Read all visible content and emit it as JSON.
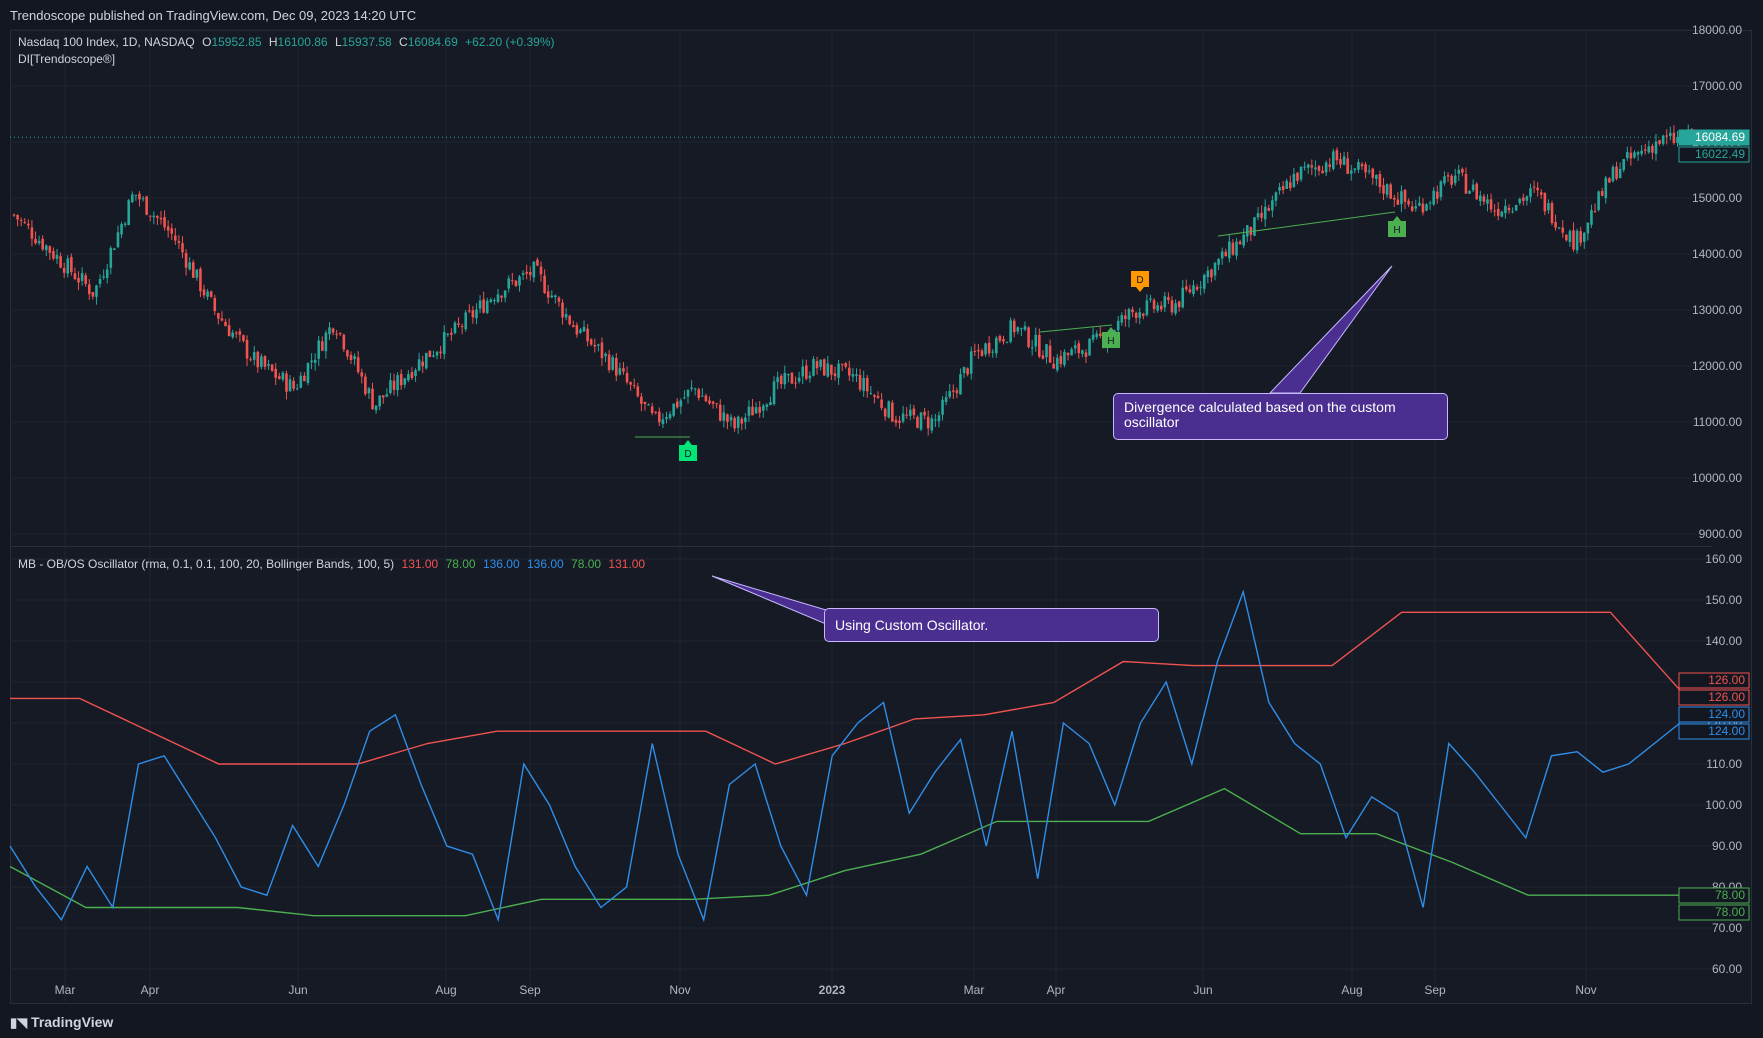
{
  "header": {
    "published": "Trendoscope published on TradingView.com, Dec 09, 2023 14:20 UTC"
  },
  "main_legend": {
    "symbol": "Nasdaq 100 Index, 1D, NASDAQ",
    "o_label": "O",
    "o_value": "15952.85",
    "h_label": "H",
    "h_value": "16100.86",
    "l_label": "L",
    "l_value": "15937.58",
    "c_label": "C",
    "c_value": "16084.69",
    "change": "+62.20 (+0.39%)",
    "indicator": "DI[Trendoscope®]"
  },
  "osc_legend": {
    "name": "MB - OB/OS Oscillator (rma, 0.1, 0.1, 100, 20, Bollinger Bands, 100, 5)",
    "v1": "131.00",
    "v2": "78.00",
    "v3": "136.00",
    "v4": "136.00",
    "v5": "78.00",
    "v6": "131.00"
  },
  "price_axis": [
    "18000.00",
    "17000.00",
    "16000.00",
    "15000.00",
    "14000.00",
    "13000.00",
    "12000.00",
    "11000.00",
    "10000.00",
    "9000.00"
  ],
  "osc_axis": [
    "160.00",
    "150.00",
    "140.00",
    "130.00",
    "120.00",
    "110.00",
    "100.00",
    "90.00",
    "80.00",
    "70.00",
    "60.00"
  ],
  "price_tags": {
    "last": "16084.69",
    "second": "16022.49"
  },
  "osc_tags": [
    "126.00",
    "126.00",
    "124.00",
    "124.00",
    "78.00",
    "78.00"
  ],
  "time_axis": [
    "Mar",
    "Apr",
    "Jun",
    "Aug",
    "Sep",
    "Nov",
    "2023",
    "Mar",
    "Apr",
    "Jun",
    "Aug",
    "Sep",
    "Nov"
  ],
  "markers": {
    "d1": "D",
    "d2": "D",
    "h1": "H",
    "h2": "H"
  },
  "callouts": {
    "divergence": "Divergence calculated based on the custom oscillator",
    "oscillator": "Using Custom Oscillator."
  },
  "footer": {
    "logo": "TradingView"
  },
  "colors": {
    "up": "#26a69a",
    "down": "#f05350",
    "osc": "#2e8ee8",
    "upper": "#f05350",
    "lower": "#4caf50",
    "callout": "#4a2f90",
    "bg": "#131722"
  },
  "chart_data": [
    {
      "type": "candlestick",
      "title": "Nasdaq 100 Index, 1D, NASDAQ",
      "ylim": [
        9000,
        18000
      ],
      "x_ticks": [
        "Mar",
        "Apr",
        "Jun",
        "Aug",
        "Sep",
        "Nov",
        "2023",
        "Mar",
        "Apr",
        "Jun",
        "Aug",
        "Sep",
        "Nov"
      ],
      "close_path": [
        [
          "Feb 2022",
          14700
        ],
        [
          "Mar 2022",
          14000
        ],
        [
          "Mar 2022",
          13300
        ],
        [
          "Apr 2022",
          15100
        ],
        [
          "Apr 2022",
          14300
        ],
        [
          "May 2022",
          13000
        ],
        [
          "May 2022",
          12100
        ],
        [
          "Jun 2022",
          11600
        ],
        [
          "Jun 2022",
          12800
        ],
        [
          "Jun 2022",
          11300
        ],
        [
          "Jul 2022",
          12000
        ],
        [
          "Jul 2022",
          12600
        ],
        [
          "Aug 2022",
          13300
        ],
        [
          "Aug 2022",
          13700
        ],
        [
          "Sep 2022",
          12700
        ],
        [
          "Sep 2022",
          12000
        ],
        [
          "Oct 2022",
          11000
        ],
        [
          "Oct 2022",
          11600
        ],
        [
          "Oct 2022",
          10900
        ],
        [
          "Nov 2022",
          11600
        ],
        [
          "Nov 2022",
          12000
        ],
        [
          "Dec 2022",
          11800
        ],
        [
          "Dec 2022",
          11100
        ],
        [
          "Jan 2023",
          11000
        ],
        [
          "Feb 2023",
          12200
        ],
        [
          "Feb 2023",
          12700
        ],
        [
          "Mar 2023",
          12100
        ],
        [
          "Mar 2023",
          12400
        ],
        [
          "Apr 2023",
          13000
        ],
        [
          "May 2023",
          13100
        ],
        [
          "May 2023",
          13800
        ],
        [
          "Jun 2023",
          14500
        ],
        [
          "Jul 2023",
          15400
        ],
        [
          "Jul 2023",
          15700
        ],
        [
          "Aug 2023",
          15300
        ],
        [
          "Aug 2023",
          14800
        ],
        [
          "Sep 2023",
          15400
        ],
        [
          "Sep 2023",
          14800
        ],
        [
          "Oct 2023",
          15100
        ],
        [
          "Oct 2023",
          14200
        ],
        [
          "Nov 2023",
          15500
        ],
        [
          "Nov 2023",
          16000
        ],
        [
          "Dec 2023",
          16084.69
        ]
      ]
    },
    {
      "type": "line",
      "title": "MB - OB/OS Oscillator (rma, 0.1, 0.1, 100, 20, Bollinger Bands, 100, 5)",
      "ylim": [
        60,
        160
      ],
      "series": [
        {
          "values": [
            90,
            80,
            72,
            85,
            75,
            110,
            112,
            102,
            92,
            80,
            78,
            95,
            85,
            100,
            118,
            122,
            105,
            90,
            88,
            72,
            110,
            100,
            85,
            75,
            80,
            115,
            88,
            72,
            105,
            110,
            90,
            78,
            112,
            120,
            125,
            98,
            108,
            116,
            90,
            118,
            82,
            120,
            115,
            100,
            120,
            130,
            110,
            135,
            152,
            125,
            115,
            110,
            92,
            102,
            98,
            75,
            115,
            108,
            100,
            92,
            112,
            113,
            108,
            110,
            115,
            120
          ]
        },
        {
          "values": [
            126,
            126,
            118,
            110,
            110,
            110,
            115,
            118,
            118,
            118,
            118,
            110,
            115,
            121,
            122,
            125,
            135,
            134,
            134,
            134,
            147,
            147,
            147,
            147,
            128
          ]
        },
        {
          "values": [
            85,
            75,
            75,
            75,
            73,
            73,
            73,
            77,
            77,
            77,
            78,
            84,
            88,
            96,
            96,
            96,
            104,
            93,
            93,
            86,
            78,
            78,
            78
          ]
        }
      ]
    }
  ]
}
